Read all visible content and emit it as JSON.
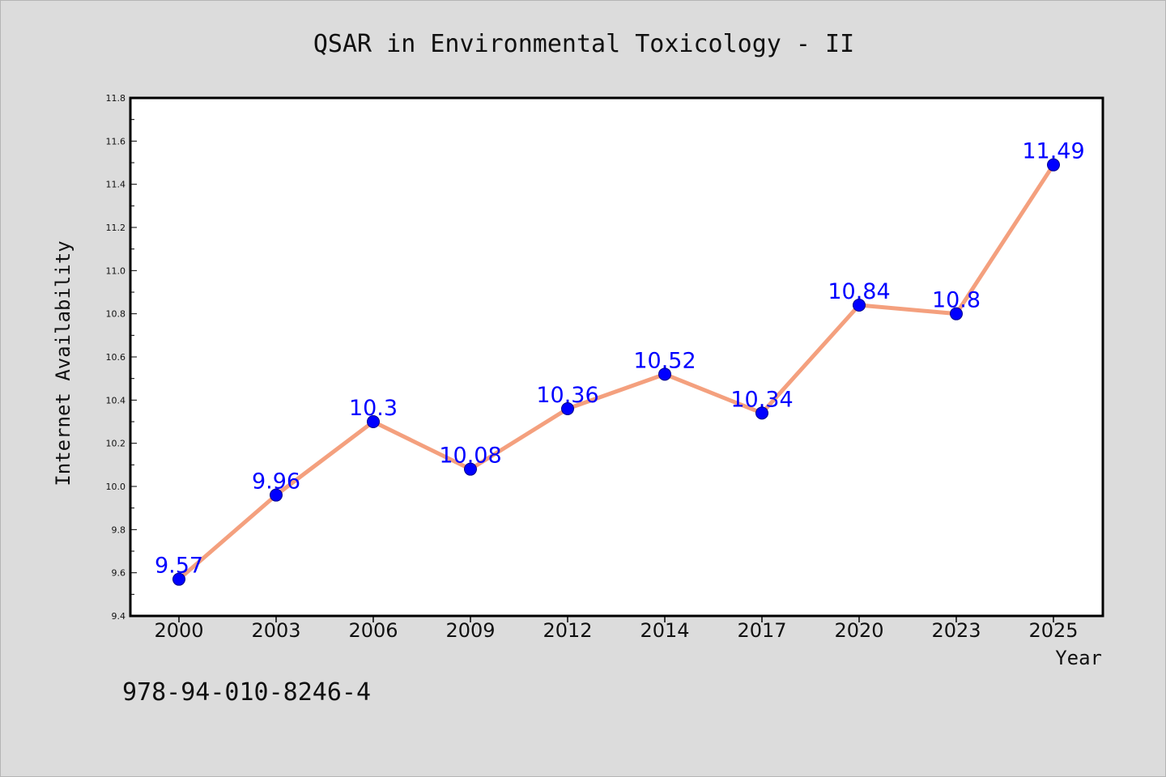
{
  "chart_data": {
    "type": "line",
    "title": "QSAR in Environmental Toxicology - II",
    "xlabel": "Year",
    "ylabel": "Internet Availability",
    "categories": [
      "2000",
      "2003",
      "2006",
      "2009",
      "2012",
      "2014",
      "2017",
      "2020",
      "2023",
      "2025"
    ],
    "values": [
      9.57,
      9.96,
      10.3,
      10.08,
      10.36,
      10.52,
      10.34,
      10.84,
      10.8,
      11.49
    ],
    "data_labels": [
      "9.57",
      "9.96",
      "10.3",
      "10.08",
      "10.36",
      "10.52",
      "10.34",
      "10.84",
      "10.8",
      "11.49"
    ],
    "ylim": [
      9.4,
      11.8
    ],
    "yticks": [
      "9.4",
      "9.6",
      "9.8",
      "10.0",
      "10.2",
      "10.4",
      "10.6",
      "10.8",
      "11.0",
      "11.2",
      "11.4",
      "11.6",
      "11.8"
    ],
    "grid": false,
    "legend": "none",
    "colors": {
      "line": "#f4a07e",
      "marker": "#0000ff",
      "label": "#0000ff",
      "plot_background": "#ffffff",
      "figure_background": "#dcdcdc"
    }
  },
  "footer": {
    "isbn": "978-94-010-8246-4"
  }
}
